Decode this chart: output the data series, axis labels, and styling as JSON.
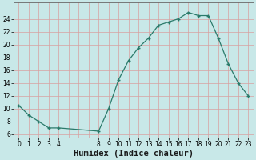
{
  "x": [
    0,
    1,
    2,
    3,
    4,
    8,
    9,
    10,
    11,
    12,
    13,
    14,
    15,
    16,
    17,
    18,
    19,
    20,
    21,
    22,
    23
  ],
  "y": [
    10.5,
    9.0,
    8.0,
    7.0,
    7.0,
    6.5,
    10.0,
    14.5,
    17.5,
    19.5,
    21.0,
    23.0,
    23.5,
    24.0,
    25.0,
    24.5,
    24.5,
    21.0,
    17.0,
    14.0,
    12.0
  ],
  "line_color": "#2a7a6a",
  "marker": "+",
  "bg_color": "#c8e8e8",
  "grid_color_v": "#d8a0a0",
  "grid_color_h": "#d8a0a0",
  "xlabel": "Humidex (Indice chaleur)",
  "yticks": [
    6,
    8,
    10,
    12,
    14,
    16,
    18,
    20,
    22,
    24
  ],
  "xtick_positions": [
    0,
    1,
    2,
    3,
    4,
    8,
    9,
    10,
    11,
    12,
    13,
    14,
    15,
    16,
    17,
    18,
    19,
    20,
    21,
    22,
    23
  ],
  "xtick_labels": [
    "0",
    "1",
    "2",
    "3",
    "4",
    "8",
    "9",
    "10",
    "11",
    "12",
    "13",
    "14",
    "15",
    "16",
    "17",
    "18",
    "19",
    "20",
    "21",
    "22",
    "23"
  ],
  "ylim": [
    5.5,
    26.5
  ],
  "xlim": [
    -0.5,
    23.5
  ],
  "xlabel_fontsize": 7.5,
  "tick_fontsize": 5.5,
  "markersize": 3.5,
  "linewidth": 0.9
}
